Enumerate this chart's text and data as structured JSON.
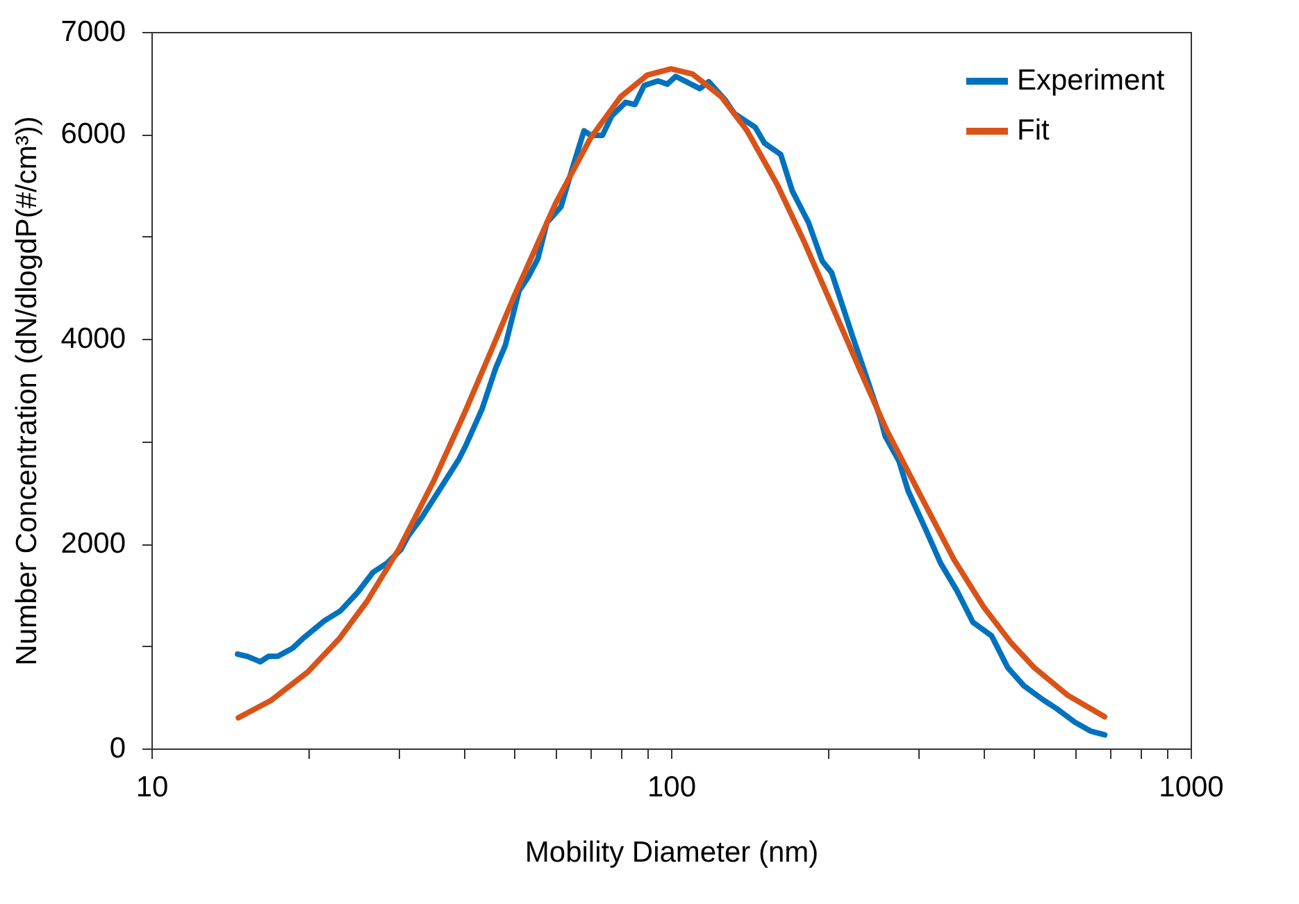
{
  "chart_data": {
    "type": "line",
    "xlabel": "Mobility Diameter (nm)",
    "ylabel": "Number Concentration (dN/dlogdP(#/cm³))",
    "log": "x",
    "xlim": [
      10,
      1000
    ],
    "xticks": [
      10,
      {
        "value": 20,
        "label": null
      },
      {
        "value": 30,
        "label": null
      },
      {
        "value": 40,
        "label": null
      },
      {
        "value": 50,
        "label": null
      },
      {
        "value": 60,
        "label": null
      },
      {
        "value": 70,
        "label": null
      },
      {
        "value": 80,
        "label": null
      },
      {
        "value": 90,
        "label": null
      },
      100,
      {
        "value": 200,
        "label": null
      },
      {
        "value": 300,
        "label": null
      },
      {
        "value": 400,
        "label": null
      },
      {
        "value": 500,
        "label": null
      },
      {
        "value": 600,
        "label": null
      },
      {
        "value": 700,
        "label": null
      },
      {
        "value": 800,
        "label": null
      },
      {
        "value": 900,
        "label": null
      },
      1000
    ],
    "ylim": [
      0,
      7000
    ],
    "yticks": [
      0,
      {
        "value": 1000,
        "label": null
      },
      2000,
      {
        "value": 3000,
        "label": null
      },
      4000,
      {
        "value": 5000,
        "label": null
      },
      6000,
      7000
    ],
    "legend": "top right",
    "line_style": "solid",
    "series": [
      {
        "name": "Experiment",
        "color": "#0072bd",
        "x": [
          14.65,
          15.3,
          16.2,
          16.8,
          17.5,
          18.7,
          19.6,
          21.5,
          23.1,
          24.9,
          26.7,
          28.4,
          30.2,
          31.2,
          33.1,
          36.0,
          39.1,
          40.3,
          43.3,
          46.0,
          48.0,
          51.0,
          53.1,
          55.4,
          57.7,
          61.4,
          64.6,
          68.0,
          70.1,
          73.8,
          76.9,
          81.8,
          85.2,
          88.8,
          94.4,
          98.4,
          102.1,
          113.6,
          118.2,
          127.1,
          132.4,
          145.2,
          151.3,
          162.6,
          171.1,
          183.9,
          195.5,
          203.7,
          223.5,
          237.7,
          252.8,
          258.3,
          274.6,
          285.8,
          310.3,
          330.2,
          354.8,
          381.1,
          414.0,
          444.7,
          477.8,
          518.8,
          552,
          598.6,
          643,
          683.4
        ],
        "values": [
          922,
          900,
          847,
          900,
          900,
          980,
          1078,
          1246,
          1344,
          1521,
          1721,
          1810,
          1943,
          2076,
          2253,
          2542,
          2830,
          2963,
          3318,
          3718,
          3940,
          4472,
          4605,
          4782,
          5138,
          5292,
          5670,
          6034,
          5990,
          5990,
          6180,
          6313,
          6291,
          6477,
          6522,
          6490,
          6566,
          6446,
          6513,
          6336,
          6203,
          6069,
          5914,
          5803,
          5448,
          5138,
          4760,
          4649,
          4028,
          3628,
          3229,
          3052,
          2808,
          2520,
          2120,
          1810,
          1544,
          1233,
          1100,
          789,
          612,
          479,
          390,
          257,
          168,
          133
        ]
      },
      {
        "name": "Fit",
        "color": "#d95319",
        "x": [
          14.7,
          17,
          20,
          23,
          26,
          30,
          35,
          40,
          45,
          50,
          60,
          70,
          80,
          90,
          100,
          110,
          125,
          140,
          160,
          180,
          200,
          230,
          260,
          300,
          350,
          400,
          450,
          500,
          580,
          683
        ],
        "values": [
          300,
          470,
          748,
          1074,
          1438,
          1955,
          2622,
          3271,
          3878,
          4429,
          5329,
          5963,
          6367,
          6578,
          6640,
          6589,
          6367,
          6037,
          5511,
          4961,
          4429,
          3720,
          3110,
          2500,
          1850,
          1380,
          1040,
          790,
          520,
          310
        ]
      }
    ]
  }
}
